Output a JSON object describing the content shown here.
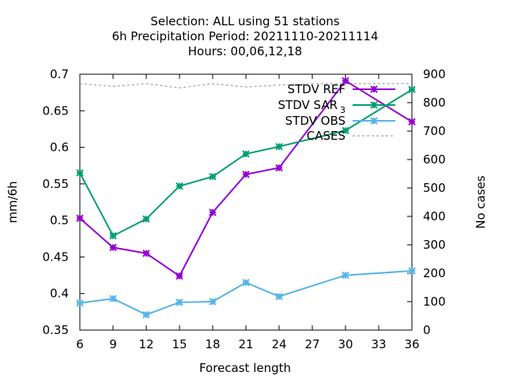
{
  "chart_data": {
    "type": "line",
    "title_lines": [
      "Selection: ALL using    51 stations",
      "6h Precipitation   Period: 20211110-20211114",
      "Hours:  00,06,12,18"
    ],
    "xlabel": "Forecast length",
    "ylabel": "mm/6h",
    "y2label": "No cases",
    "x_ticks": [
      6,
      9,
      12,
      15,
      18,
      21,
      24,
      27,
      30,
      33,
      36
    ],
    "xlim": [
      6,
      36
    ],
    "ylim": [
      0.35,
      0.7
    ],
    "y_ticks": [
      0.35,
      0.4,
      0.45,
      0.5,
      0.55,
      0.6,
      0.65,
      0.7
    ],
    "y2lim": [
      0,
      900
    ],
    "y2_ticks": [
      0,
      100,
      200,
      300,
      400,
      500,
      600,
      700,
      800,
      900
    ],
    "legend_position": "top-right",
    "grid": false,
    "series": [
      {
        "name": "STDV REF",
        "color": "#9400d3",
        "axis": "y",
        "marker": "star",
        "x": [
          6,
          9,
          12,
          15,
          18,
          21,
          24,
          30,
          36
        ],
        "values": [
          0.503,
          0.463,
          0.455,
          0.424,
          0.511,
          0.563,
          0.572,
          0.691,
          0.635
        ]
      },
      {
        "name": "STDV SAR_3",
        "legend_main": "STDV SAR",
        "legend_sub": "3",
        "color": "#009e73",
        "axis": "y",
        "marker": "star",
        "x": [
          6,
          9,
          12,
          15,
          18,
          21,
          24,
          30,
          36
        ],
        "values": [
          0.565,
          0.479,
          0.502,
          0.547,
          0.56,
          0.591,
          0.601,
          0.623,
          0.679
        ]
      },
      {
        "name": "STDV OBS",
        "color": "#56b4e9",
        "axis": "y",
        "marker": "star",
        "x": [
          6,
          9,
          12,
          15,
          18,
          21,
          24,
          30,
          36
        ],
        "values": [
          0.387,
          0.393,
          0.371,
          0.388,
          0.389,
          0.415,
          0.396,
          0.425,
          0.431
        ]
      },
      {
        "name": "CASES",
        "color": "#a0a0a0",
        "axis": "y2",
        "dashed": true,
        "x": [
          6,
          9,
          12,
          15,
          18,
          21,
          24,
          27,
          30,
          33,
          36
        ],
        "values": [
          867,
          857,
          867,
          852,
          867,
          855,
          862,
          867,
          867,
          867,
          867
        ]
      }
    ]
  }
}
